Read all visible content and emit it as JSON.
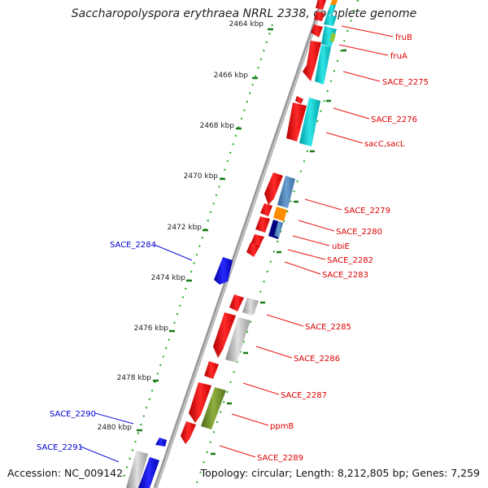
{
  "title": "Saccharopolyspora erythraea NRRL 2338, complete genome",
  "accession": "Accession: NC_009142",
  "topology": "Topology: circular; Length: 8,212,805 bp; Genes: 7,259",
  "ticks": [
    "2464 kbp",
    "2466 kbp",
    "2468 kbp",
    "2470 kbp",
    "2472 kbp",
    "2474 kbp",
    "2476 kbp",
    "2478 kbp",
    "2480 kbp"
  ],
  "genes_right": [
    "fruB",
    "fruA",
    "SACE_2275",
    "SACE_2276",
    "sacC,sacL",
    "SACE_2279",
    "SACE_2280",
    "ubiE",
    "SACE_2282",
    "SACE_2283",
    "SACE_2285",
    "SACE_2286",
    "SACE_2287",
    "ppmB",
    "SACE_2289"
  ],
  "genes_left": [
    "SACE_2284",
    "SACE_2290",
    "SACE_2291"
  ],
  "colors": {
    "forward_gene": "#ee1111",
    "reverse_gene": "#1111dd",
    "backbone": "#888888",
    "tick_dots": "#22aa22",
    "cyan_cog": "#00c8cc",
    "steelblue_cog": "#4a7fb5",
    "orange_cog": "#ff8c00",
    "navy_cog": "#000080",
    "olive_cog": "#6b8e23",
    "gray_cog": "#b0b0b0"
  }
}
